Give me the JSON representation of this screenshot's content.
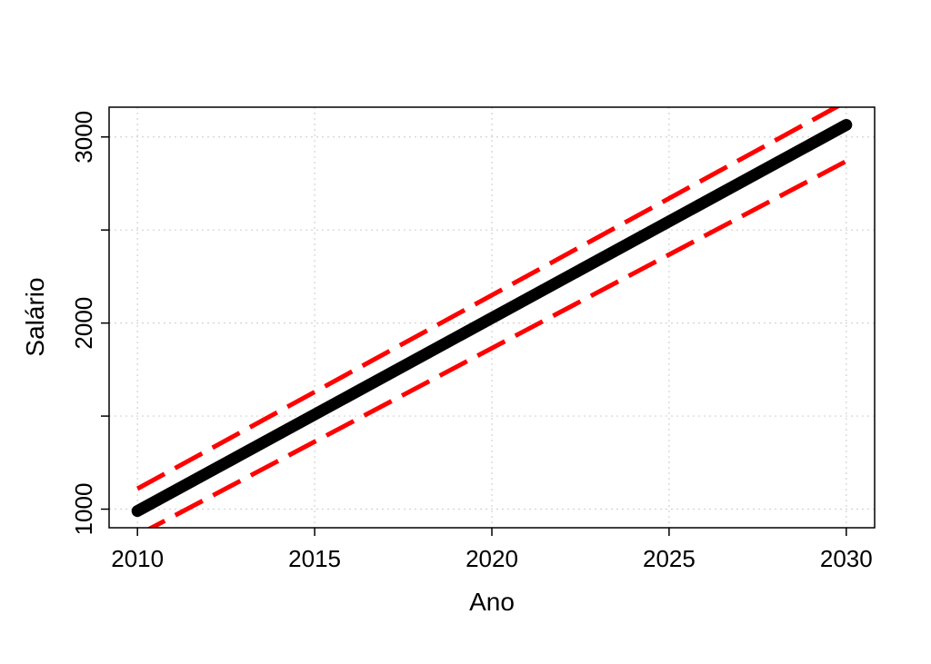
{
  "chart_data": {
    "type": "line",
    "title": "",
    "xlabel": "Ano",
    "ylabel": "Salário",
    "xlim": [
      2009.2,
      2030.8
    ],
    "ylim": [
      900,
      3160
    ],
    "grid": true,
    "x_ticks": [
      2010,
      2015,
      2020,
      2025,
      2030
    ],
    "x_tick_labels": [
      "2010",
      "2015",
      "2020",
      "2025",
      "2030"
    ],
    "y_ticks": [
      1000,
      1500,
      2000,
      2500,
      3000
    ],
    "y_tick_labels": [
      "1000",
      "",
      "2000",
      "",
      "3000"
    ],
    "series": [
      {
        "style": "solid",
        "color": "#000000",
        "x": [
          2010,
          2030
        ],
        "y": [
          990,
          3065
        ]
      },
      {
        "style": "dashed",
        "color": "#ff0000",
        "x": [
          2010,
          2030
        ],
        "y": [
          1110,
          3190
        ]
      },
      {
        "style": "dashed",
        "color": "#ff0000",
        "x": [
          2010,
          2030
        ],
        "y": [
          860,
          2870
        ]
      }
    ]
  }
}
